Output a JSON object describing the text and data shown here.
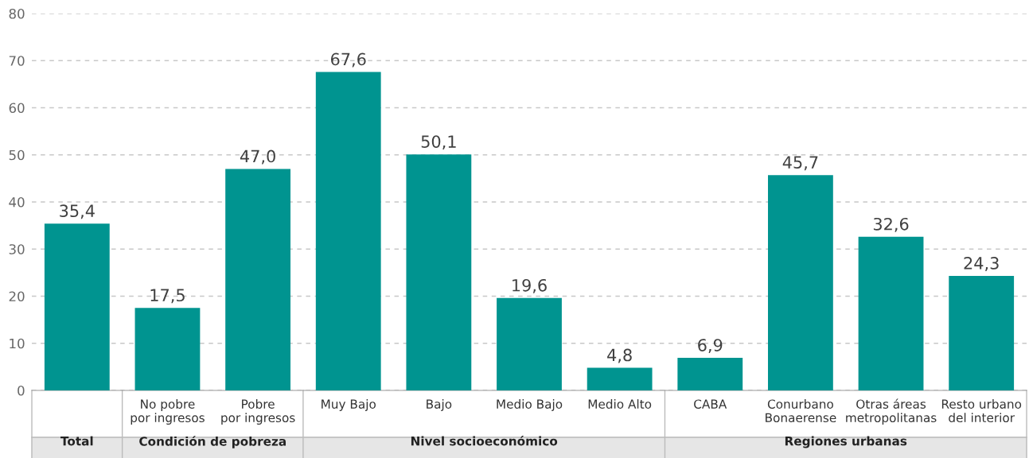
{
  "chart_data": {
    "type": "bar",
    "categories": [
      null,
      "No pobre\npor ingresos",
      "Pobre\npor ingresos",
      "Muy Bajo",
      "Bajo",
      "Medio Bajo",
      "Medio Alto",
      "CABA",
      "Conurbano\nBonaerense",
      "Otras áreas\nmetropolitanas",
      "Resto urbano\ndel interior"
    ],
    "values": [
      35.4,
      17.5,
      47.0,
      67.6,
      50.1,
      19.6,
      4.8,
      6.9,
      45.7,
      32.6,
      24.3
    ],
    "value_labels": [
      "35,4",
      "17,5",
      "47,0",
      "67,6",
      "50,1",
      "19,6",
      "4,8",
      "6,9",
      "45,7",
      "32,6",
      "24,3"
    ],
    "color": "#009490",
    "ylim": [
      0,
      80
    ],
    "yticks": [
      0,
      10,
      20,
      30,
      40,
      50,
      60,
      70,
      80
    ],
    "grid": "y",
    "annotations": [
      "Total",
      "Condición de pobreza",
      "Nivel socioeconómico",
      "Regiones urbanas"
    ]
  }
}
